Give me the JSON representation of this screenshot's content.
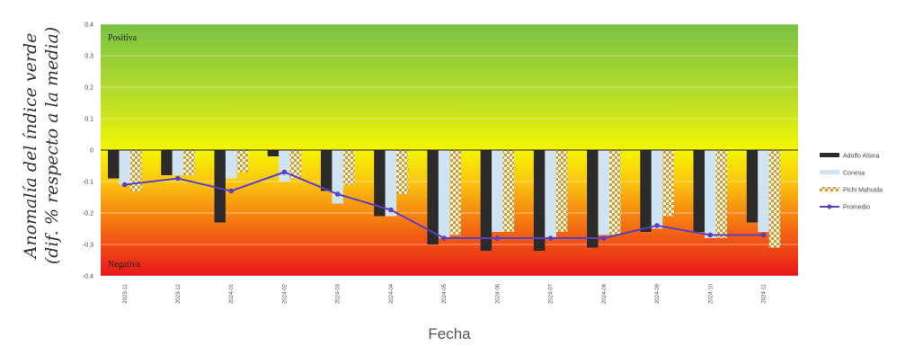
{
  "chart_data": {
    "type": "bar",
    "title": "",
    "xlabel": "Fecha",
    "ylabel_lines": [
      "Anomalía del índice verde",
      "(dif. % respecto a la media)"
    ],
    "ylim": [
      -0.4,
      0.4
    ],
    "yticks": [
      "0.4",
      "0.3",
      "0.2",
      "0.1",
      "0",
      "-0.1",
      "-0.2",
      "-0.3",
      "-0.4"
    ],
    "grid": true,
    "legend_position": "right",
    "region_labels": {
      "positive": "Positiva",
      "negative": "Negativa"
    },
    "categories": [
      "2023-11",
      "2023-12",
      "2024-01",
      "2024-02",
      "2024-03",
      "2024-04",
      "2024-05",
      "2024-06",
      "2024-07",
      "2024-08",
      "2024-09",
      "2024-10",
      "2024-11"
    ],
    "series": [
      {
        "name": "Adolfo Alsina",
        "type": "bar",
        "color": "#2b2b2b",
        "values": [
          -0.09,
          -0.08,
          -0.23,
          -0.02,
          -0.13,
          -0.21,
          -0.3,
          -0.32,
          -0.32,
          -0.31,
          -0.26,
          -0.26,
          -0.23
        ]
      },
      {
        "name": "Conesa",
        "type": "bar",
        "color": "#cfe3f3",
        "values": [
          -0.11,
          -0.08,
          -0.09,
          -0.1,
          -0.17,
          -0.21,
          -0.28,
          -0.26,
          -0.28,
          -0.27,
          -0.25,
          -0.28,
          -0.26
        ]
      },
      {
        "name": "Pichi Mahuida",
        "type": "bar",
        "color": "#d8b45a",
        "pattern": "checker",
        "values": [
          -0.13,
          -0.08,
          -0.07,
          -0.09,
          -0.11,
          -0.14,
          -0.27,
          -0.26,
          -0.26,
          -0.27,
          -0.21,
          -0.28,
          -0.31
        ]
      },
      {
        "name": "Promedio",
        "type": "line",
        "color": "#5a3fc0",
        "values": [
          -0.11,
          -0.09,
          -0.13,
          -0.07,
          -0.14,
          -0.19,
          -0.28,
          -0.28,
          -0.28,
          -0.28,
          -0.24,
          -0.27,
          -0.27
        ]
      }
    ]
  }
}
